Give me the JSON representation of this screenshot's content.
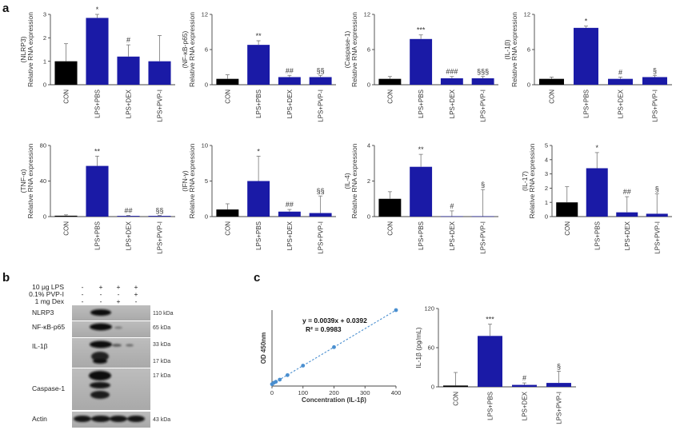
{
  "panels": {
    "a": "a",
    "b": "b",
    "c": "c"
  },
  "a_labels": {
    "relative": "Relative RNA expression"
  },
  "a_categories": [
    "CON",
    "LPS+PBS",
    "LPS+DEX",
    "LPS+PVP-I"
  ],
  "colors": {
    "control": "#000000",
    "treatment": "#1a1aa6",
    "error": "#777777",
    "fit": "#4a8fd0",
    "point": "#4a8fd0"
  },
  "chart_data": [
    {
      "type": "bar",
      "ylabel": "(NLRP3)",
      "ylim": [
        0,
        3
      ],
      "yticks": [
        0,
        1,
        2,
        3
      ],
      "categories": [
        "CON",
        "LPS+PBS",
        "LPS+DEX",
        "LPS+PVP-I"
      ],
      "values": [
        1.0,
        2.85,
        1.2,
        1.0
      ],
      "errors": [
        0.75,
        0.3,
        0.5,
        1.1
      ],
      "signif": [
        "",
        "*",
        "#",
        ""
      ]
    },
    {
      "type": "bar",
      "ylabel": "(NF-κB-p65)",
      "ylim": [
        0,
        12
      ],
      "yticks": [
        0,
        6,
        12
      ],
      "categories": [
        "CON",
        "LPS+PBS",
        "LPS+DEX",
        "LPS+PVP-I"
      ],
      "values": [
        1.0,
        6.8,
        1.3,
        1.3
      ],
      "errors": [
        0.7,
        0.7,
        0.3,
        0.3
      ],
      "signif": [
        "",
        "**",
        "##",
        "§§"
      ]
    },
    {
      "type": "bar",
      "ylabel": "(Caspase-1)",
      "ylim": [
        0,
        12
      ],
      "yticks": [
        0,
        6,
        12
      ],
      "categories": [
        "CON",
        "LPS+PBS",
        "LPS+DEX",
        "LPS+PVP-I"
      ],
      "values": [
        1.0,
        7.8,
        1.1,
        1.1
      ],
      "errors": [
        0.4,
        0.7,
        0.3,
        0.3
      ],
      "signif": [
        "",
        "***",
        "###",
        "§§§"
      ]
    },
    {
      "type": "bar",
      "ylabel": "(IL-1β)",
      "ylim": [
        0,
        12
      ],
      "yticks": [
        0,
        6,
        12
      ],
      "categories": [
        "CON",
        "LPS+PBS",
        "LPS+DEX",
        "LPS+PVP-I"
      ],
      "values": [
        1.0,
        9.7,
        1.0,
        1.3
      ],
      "errors": [
        0.3,
        0.3,
        0.3,
        0.3
      ],
      "signif": [
        "",
        "*",
        "#",
        "§"
      ]
    },
    {
      "type": "bar",
      "ylabel": "(TNF-α)",
      "ylim": [
        0,
        80
      ],
      "yticks": [
        0,
        40,
        80
      ],
      "categories": [
        "CON",
        "LPS+PBS",
        "LPS+DEX",
        "LPS+PVP-I"
      ],
      "values": [
        1.0,
        57,
        0.8,
        0.8
      ],
      "errors": [
        1.0,
        11,
        0.5,
        0.5
      ],
      "signif": [
        "",
        "**",
        "##",
        "§§"
      ]
    },
    {
      "type": "bar",
      "ylabel": "(IFN-γ)",
      "ylim": [
        0,
        10
      ],
      "yticks": [
        0,
        5,
        10
      ],
      "categories": [
        "CON",
        "LPS+PBS",
        "LPS+DEX",
        "LPS+PVP-I"
      ],
      "values": [
        1.0,
        5.0,
        0.7,
        0.5
      ],
      "errors": [
        0.8,
        3.5,
        0.3,
        2.4
      ],
      "signif": [
        "",
        "*",
        "##",
        "§§"
      ]
    },
    {
      "type": "bar",
      "ylabel": "(IL-4)",
      "ylim": [
        0,
        4
      ],
      "yticks": [
        0,
        2,
        4
      ],
      "categories": [
        "CON",
        "LPS+PBS",
        "LPS+DEX",
        "LPS+PVP-I"
      ],
      "values": [
        1.0,
        2.8,
        0.02,
        0.02
      ],
      "errors": [
        0.4,
        0.7,
        0.3,
        1.5
      ],
      "signif": [
        "",
        "**",
        "#",
        "§"
      ]
    },
    {
      "type": "bar",
      "ylabel": "(IL-17)",
      "ylim": [
        0,
        5
      ],
      "yticks": [
        0,
        1,
        2,
        3,
        4,
        5
      ],
      "categories": [
        "CON",
        "LPS+PBS",
        "LPS+DEX",
        "LPS+PVP-I"
      ],
      "values": [
        1.0,
        3.4,
        0.3,
        0.2
      ],
      "errors": [
        1.1,
        1.1,
        1.1,
        1.4
      ],
      "signif": [
        "",
        "*",
        "##",
        "§"
      ]
    },
    {
      "type": "scatter",
      "xlabel": "Concentration (IL-1β)",
      "ylabel": "OD 450nm",
      "xlim": [
        0,
        400
      ],
      "ylim": [
        0,
        1.6
      ],
      "xticks": [
        0,
        100,
        200,
        300,
        400
      ],
      "x": [
        0,
        6.25,
        12.5,
        25,
        50,
        100,
        200,
        400
      ],
      "y": [
        0.039,
        0.07,
        0.09,
        0.135,
        0.23,
        0.43,
        0.82,
        1.6
      ],
      "equation": "y = 0.0039x + 0.0392",
      "r2": "R² = 0.9983",
      "fit": [
        0.0039,
        0.0392
      ]
    },
    {
      "type": "bar",
      "ylabel": "IL-1β (pg/mL)",
      "ylim": [
        0,
        120
      ],
      "yticks": [
        0,
        60,
        120
      ],
      "categories": [
        "CON",
        "LPS+PBS",
        "LPS+DEX",
        "LPS+PVP-I"
      ],
      "values": [
        2,
        78,
        3,
        6
      ],
      "errors": [
        20,
        18,
        3,
        18
      ],
      "signif": [
        "",
        "***",
        "#",
        "§"
      ]
    }
  ],
  "western": {
    "conditions": [
      {
        "label": "10 μg LPS",
        "marks": [
          "-",
          "+",
          "+",
          "+"
        ]
      },
      {
        "label": "0.1% PVP-I",
        "marks": [
          "-",
          "-",
          "-",
          "+"
        ]
      },
      {
        "label": "1 mg Dex",
        "marks": [
          "-",
          "-",
          "+",
          "-"
        ]
      }
    ],
    "rows": [
      {
        "protein": "NLRP3",
        "kda": [
          "110 kDa"
        ]
      },
      {
        "protein": "NF-κB-p65",
        "kda": [
          "65 kDa"
        ]
      },
      {
        "protein": "IL-1β",
        "kda": [
          "33 kDa",
          "17 kDa"
        ]
      },
      {
        "protein": "Caspase-1",
        "kda": [
          "17 kDa"
        ]
      },
      {
        "protein": "Actin",
        "kda": [
          "43 kDa"
        ]
      }
    ]
  }
}
